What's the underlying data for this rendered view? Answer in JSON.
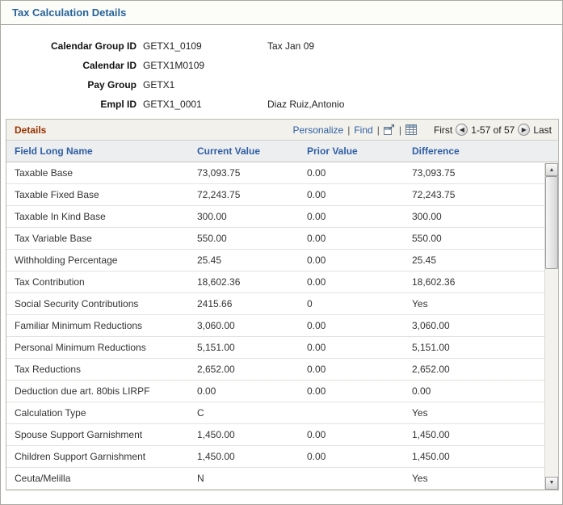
{
  "page": {
    "title": "Tax Calculation Details"
  },
  "header_fields": [
    {
      "label": "Calendar Group ID",
      "value": "GETX1_0109",
      "extra": "Tax Jan 09"
    },
    {
      "label": "Calendar ID",
      "value": "GETX1M0109",
      "extra": ""
    },
    {
      "label": "Pay Group",
      "value": "GETX1",
      "extra": ""
    },
    {
      "label": "Empl ID",
      "value": "GETX1_0001",
      "extra": "Diaz Ruiz,Antonio"
    }
  ],
  "grid": {
    "title": "Details",
    "toolbar": {
      "personalize_label": "Personalize",
      "find_label": "Find",
      "separator": "|",
      "zoom_icon": "popup-window-icon",
      "download_icon": "download-grid-icon",
      "first_label": "First",
      "prev_icon": "previous-arrow",
      "range_text": "1-57 of 57",
      "next_icon": "next-arrow",
      "last_label": "Last"
    },
    "columns": [
      "Field Long Name",
      "Current Value",
      "Prior Value",
      "Difference"
    ],
    "rows": [
      [
        "Taxable Base",
        "73,093.75",
        "0.00",
        "73,093.75"
      ],
      [
        "Taxable Fixed Base",
        "72,243.75",
        "0.00",
        "72,243.75"
      ],
      [
        "Taxable In Kind Base",
        "300.00",
        "0.00",
        "300.00"
      ],
      [
        "Tax Variable Base",
        "550.00",
        "0.00",
        "550.00"
      ],
      [
        "Withholding Percentage",
        "25.45",
        "0.00",
        "25.45"
      ],
      [
        "Tax Contribution",
        "18,602.36",
        "0.00",
        "18,602.36"
      ],
      [
        "Social Security Contributions",
        "2415.66",
        "0",
        "Yes"
      ],
      [
        "Familiar Minimum Reductions",
        "3,060.00",
        "0.00",
        "3,060.00"
      ],
      [
        "Personal Minimum Reductions",
        "5,151.00",
        "0.00",
        "5,151.00"
      ],
      [
        "Tax Reductions",
        "2,652.00",
        "0.00",
        "2,652.00"
      ],
      [
        "Deduction due art. 80bis LIRPF",
        "0.00",
        "0.00",
        "0.00"
      ],
      [
        "Calculation Type",
        "C",
        "",
        "Yes"
      ],
      [
        "Spouse Support Garnishment",
        "1,450.00",
        "0.00",
        "1,450.00"
      ],
      [
        "Children Support Garnishment",
        "1,450.00",
        "0.00",
        "1,450.00"
      ],
      [
        "Ceuta/Melilla",
        "N",
        "",
        "Yes"
      ]
    ]
  },
  "colors": {
    "title_blue": "#26639b",
    "link_blue": "#2e5fa3",
    "grid_title_red": "#993300",
    "column_header_bg": "#edeef0"
  }
}
